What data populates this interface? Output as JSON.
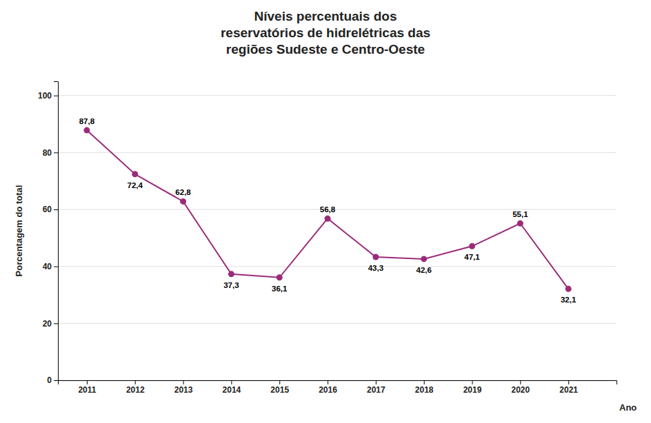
{
  "chart_data": {
    "type": "line",
    "title": "Níveis percentuais dos\nreservatórios de hidrelétricas das\nregiões Sudeste e Centro-Oeste",
    "xlabel": "Ano",
    "ylabel": "Porcentagem do total",
    "x": [
      2011,
      2012,
      2013,
      2014,
      2015,
      2016,
      2017,
      2018,
      2019,
      2020,
      2021
    ],
    "values": [
      87.8,
      72.4,
      62.8,
      37.3,
      36.1,
      56.8,
      43.3,
      42.6,
      47.1,
      55.1,
      32.1
    ],
    "value_labels": [
      "87,8",
      "72,4",
      "62,8",
      "37,3",
      "36,1",
      "56,8",
      "43,3",
      "42,6",
      "47,1",
      "55,1",
      "32,1"
    ],
    "color": "#9B2B7A",
    "marker": "circle",
    "xlim": [
      2010.4,
      2022.0
    ],
    "xticks": [
      2011,
      2012,
      2013,
      2014,
      2015,
      2016,
      2017,
      2018,
      2019,
      2020,
      2021
    ],
    "ylim": [
      0,
      105
    ],
    "yticks": [
      0,
      20,
      40,
      60,
      80,
      100
    ],
    "grid": true,
    "data_labels": true
  }
}
